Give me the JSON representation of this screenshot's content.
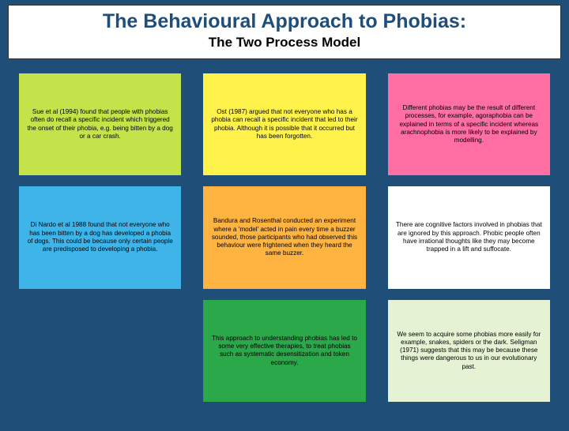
{
  "header": {
    "title": "The Behavioural Approach to Phobias:",
    "subtitle": "The Two Process Model"
  },
  "colors": {
    "page_bg": "#1f4e79",
    "header_bg": "#ffffff",
    "title_color": "#1f4e79",
    "subtitle_color": "#000000"
  },
  "cards": [
    {
      "bg": "#c4e24a",
      "text": "Sue et al (1994) found that people with phobias often do recall a specific incident which triggered the onset of their phobia, e.g. being bitten by a dog or a car crash."
    },
    {
      "bg": "#fff24a",
      "text": "Ost (1987) argued that not everyone who has a phobia can recall a specific incident that led to their phobia. Although it is possible that it occurred but has been forgotten."
    },
    {
      "bg": "#ff6fa3",
      "text": "Different phobias may be the result of different processes, for example, agoraphobia can be explained in terms of a specific incident whereas arachnophobia is more likely to be explained by modelling."
    },
    {
      "bg": "#3fb4e8",
      "text": "Di Nardo et al 1988 found that not everyone who has been bitten by a dog has developed a phobia of dogs. This could be because only certain people are predisposed to developing a phobia."
    },
    {
      "bg": "#ffb340",
      "text": "Bandura and Rosenthal conducted an experiment where a 'model' acted in pain every time a buzzer sounded, those participants who had observed this behaviour were frightened when they heard the same buzzer."
    },
    {
      "bg": "#ffffff",
      "text": "There are cognitive factors involved in phobias that are ignored by this approach. Phobic people often have irrational thoughts like they may become trapped in a lift and suffocate."
    },
    {
      "bg": "transparent",
      "text": ""
    },
    {
      "bg": "#2aa84a",
      "text": "This approach to understanding phobias has led to some very effective therapies, to treat phobias such as systematic desensitization and token economy."
    },
    {
      "bg": "#e5f3d4",
      "text": "We seem to acquire some phobias more easily for example, snakes, spiders or the dark. Seligman (1971) suggests that this may be because these things were dangerous to us in our evolutionary past."
    }
  ],
  "layout": {
    "columns": 3,
    "rows": 3,
    "card_fontsize_pt": 8,
    "title_fontsize_pt": 25,
    "subtitle_fontsize_pt": 17
  }
}
